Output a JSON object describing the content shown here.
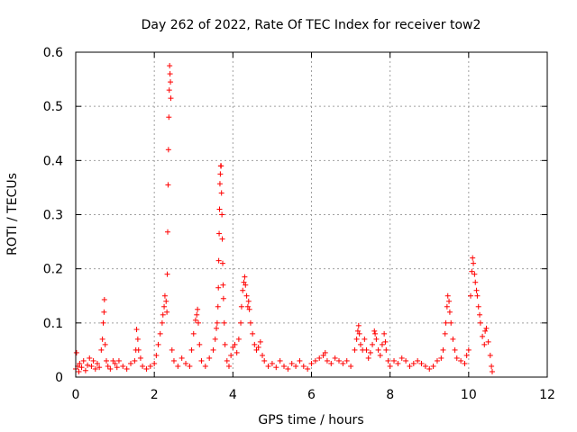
{
  "chart_data": {
    "type": "scatter",
    "title": "Day 262 of 2022, Rate Of TEC Index for receiver tow2",
    "xlabel": "GPS time / hours",
    "ylabel": "ROTI / TECUs",
    "xlim": [
      0,
      12
    ],
    "ylim": [
      0,
      0.6
    ],
    "x_ticks": [
      "0",
      "2",
      "4",
      "6",
      "8",
      "10",
      "12"
    ],
    "y_ticks": [
      "0",
      "0.1",
      "0.2",
      "0.3",
      "0.4",
      "0.5",
      "0.6"
    ],
    "grid": true,
    "marker": "+",
    "color": "#ff0000",
    "series": [
      {
        "points": [
          [
            0.0,
            0.015
          ],
          [
            0.02,
            0.045
          ],
          [
            0.05,
            0.02
          ],
          [
            0.08,
            0.01
          ],
          [
            0.1,
            0.025
          ],
          [
            0.15,
            0.018
          ],
          [
            0.2,
            0.03
          ],
          [
            0.25,
            0.012
          ],
          [
            0.3,
            0.022
          ],
          [
            0.35,
            0.035
          ],
          [
            0.4,
            0.02
          ],
          [
            0.45,
            0.03
          ],
          [
            0.5,
            0.015
          ],
          [
            0.55,
            0.025
          ],
          [
            0.6,
            0.018
          ],
          [
            0.65,
            0.05
          ],
          [
            0.68,
            0.07
          ],
          [
            0.7,
            0.1
          ],
          [
            0.72,
            0.12
          ],
          [
            0.73,
            0.143
          ],
          [
            0.75,
            0.06
          ],
          [
            0.78,
            0.03
          ],
          [
            0.82,
            0.02
          ],
          [
            0.88,
            0.015
          ],
          [
            0.95,
            0.03
          ],
          [
            1.0,
            0.025
          ],
          [
            1.05,
            0.018
          ],
          [
            1.1,
            0.03
          ],
          [
            1.2,
            0.02
          ],
          [
            1.3,
            0.015
          ],
          [
            1.4,
            0.025
          ],
          [
            1.5,
            0.03
          ],
          [
            1.53,
            0.05
          ],
          [
            1.55,
            0.088
          ],
          [
            1.58,
            0.07
          ],
          [
            1.6,
            0.05
          ],
          [
            1.65,
            0.035
          ],
          [
            1.7,
            0.02
          ],
          [
            1.8,
            0.015
          ],
          [
            1.9,
            0.02
          ],
          [
            2.0,
            0.025
          ],
          [
            2.05,
            0.04
          ],
          [
            2.1,
            0.06
          ],
          [
            2.15,
            0.08
          ],
          [
            2.2,
            0.1
          ],
          [
            2.22,
            0.115
          ],
          [
            2.25,
            0.13
          ],
          [
            2.27,
            0.15
          ],
          [
            2.3,
            0.14
          ],
          [
            2.32,
            0.12
          ],
          [
            2.33,
            0.19
          ],
          [
            2.34,
            0.268
          ],
          [
            2.35,
            0.355
          ],
          [
            2.36,
            0.42
          ],
          [
            2.37,
            0.48
          ],
          [
            2.38,
            0.53
          ],
          [
            2.39,
            0.575
          ],
          [
            2.4,
            0.56
          ],
          [
            2.41,
            0.545
          ],
          [
            2.42,
            0.515
          ],
          [
            2.45,
            0.05
          ],
          [
            2.5,
            0.03
          ],
          [
            2.6,
            0.02
          ],
          [
            2.7,
            0.035
          ],
          [
            2.8,
            0.025
          ],
          [
            2.9,
            0.02
          ],
          [
            2.95,
            0.05
          ],
          [
            3.0,
            0.08
          ],
          [
            3.05,
            0.105
          ],
          [
            3.08,
            0.115
          ],
          [
            3.1,
            0.125
          ],
          [
            3.12,
            0.1
          ],
          [
            3.15,
            0.06
          ],
          [
            3.2,
            0.03
          ],
          [
            3.3,
            0.02
          ],
          [
            3.4,
            0.035
          ],
          [
            3.5,
            0.05
          ],
          [
            3.55,
            0.07
          ],
          [
            3.58,
            0.09
          ],
          [
            3.6,
            0.1
          ],
          [
            3.62,
            0.13
          ],
          [
            3.63,
            0.165
          ],
          [
            3.64,
            0.215
          ],
          [
            3.65,
            0.265
          ],
          [
            3.66,
            0.31
          ],
          [
            3.67,
            0.357
          ],
          [
            3.68,
            0.375
          ],
          [
            3.69,
            0.39
          ],
          [
            3.7,
            0.39
          ],
          [
            3.71,
            0.34
          ],
          [
            3.72,
            0.3
          ],
          [
            3.73,
            0.255
          ],
          [
            3.74,
            0.21
          ],
          [
            3.75,
            0.17
          ],
          [
            3.76,
            0.145
          ],
          [
            3.78,
            0.1
          ],
          [
            3.8,
            0.06
          ],
          [
            3.85,
            0.03
          ],
          [
            3.9,
            0.02
          ],
          [
            3.95,
            0.04
          ],
          [
            4.0,
            0.055
          ],
          [
            4.05,
            0.06
          ],
          [
            4.1,
            0.045
          ],
          [
            4.15,
            0.07
          ],
          [
            4.2,
            0.1
          ],
          [
            4.22,
            0.13
          ],
          [
            4.25,
            0.16
          ],
          [
            4.28,
            0.175
          ],
          [
            4.3,
            0.185
          ],
          [
            4.32,
            0.17
          ],
          [
            4.35,
            0.15
          ],
          [
            4.38,
            0.13
          ],
          [
            4.4,
            0.14
          ],
          [
            4.42,
            0.125
          ],
          [
            4.45,
            0.1
          ],
          [
            4.5,
            0.08
          ],
          [
            4.55,
            0.06
          ],
          [
            4.6,
            0.05
          ],
          [
            4.65,
            0.055
          ],
          [
            4.7,
            0.065
          ],
          [
            4.75,
            0.04
          ],
          [
            4.8,
            0.03
          ],
          [
            4.9,
            0.02
          ],
          [
            5.0,
            0.025
          ],
          [
            5.1,
            0.018
          ],
          [
            5.2,
            0.03
          ],
          [
            5.3,
            0.02
          ],
          [
            5.4,
            0.015
          ],
          [
            5.5,
            0.025
          ],
          [
            5.6,
            0.02
          ],
          [
            5.7,
            0.03
          ],
          [
            5.8,
            0.02
          ],
          [
            5.9,
            0.015
          ],
          [
            6.0,
            0.025
          ],
          [
            6.1,
            0.03
          ],
          [
            6.2,
            0.035
          ],
          [
            6.3,
            0.04
          ],
          [
            6.35,
            0.045
          ],
          [
            6.4,
            0.03
          ],
          [
            6.5,
            0.025
          ],
          [
            6.6,
            0.035
          ],
          [
            6.7,
            0.03
          ],
          [
            6.8,
            0.025
          ],
          [
            6.9,
            0.03
          ],
          [
            7.0,
            0.02
          ],
          [
            7.1,
            0.05
          ],
          [
            7.15,
            0.07
          ],
          [
            7.18,
            0.085
          ],
          [
            7.2,
            0.095
          ],
          [
            7.22,
            0.08
          ],
          [
            7.25,
            0.06
          ],
          [
            7.3,
            0.05
          ],
          [
            7.35,
            0.07
          ],
          [
            7.4,
            0.05
          ],
          [
            7.45,
            0.035
          ],
          [
            7.5,
            0.045
          ],
          [
            7.55,
            0.06
          ],
          [
            7.6,
            0.085
          ],
          [
            7.62,
            0.08
          ],
          [
            7.65,
            0.07
          ],
          [
            7.7,
            0.05
          ],
          [
            7.75,
            0.04
          ],
          [
            7.8,
            0.06
          ],
          [
            7.85,
            0.08
          ],
          [
            7.88,
            0.065
          ],
          [
            7.9,
            0.05
          ],
          [
            7.95,
            0.03
          ],
          [
            8.0,
            0.02
          ],
          [
            8.1,
            0.03
          ],
          [
            8.2,
            0.025
          ],
          [
            8.3,
            0.035
          ],
          [
            8.4,
            0.03
          ],
          [
            8.5,
            0.02
          ],
          [
            8.6,
            0.025
          ],
          [
            8.7,
            0.03
          ],
          [
            8.8,
            0.025
          ],
          [
            8.9,
            0.02
          ],
          [
            9.0,
            0.015
          ],
          [
            9.1,
            0.02
          ],
          [
            9.2,
            0.03
          ],
          [
            9.3,
            0.035
          ],
          [
            9.35,
            0.05
          ],
          [
            9.4,
            0.08
          ],
          [
            9.42,
            0.1
          ],
          [
            9.45,
            0.13
          ],
          [
            9.47,
            0.15
          ],
          [
            9.5,
            0.14
          ],
          [
            9.52,
            0.12
          ],
          [
            9.55,
            0.1
          ],
          [
            9.6,
            0.07
          ],
          [
            9.65,
            0.05
          ],
          [
            9.7,
            0.035
          ],
          [
            9.8,
            0.03
          ],
          [
            9.9,
            0.025
          ],
          [
            9.95,
            0.04
          ],
          [
            10.0,
            0.05
          ],
          [
            10.05,
            0.15
          ],
          [
            10.08,
            0.195
          ],
          [
            10.1,
            0.22
          ],
          [
            10.12,
            0.21
          ],
          [
            10.15,
            0.19
          ],
          [
            10.17,
            0.175
          ],
          [
            10.2,
            0.16
          ],
          [
            10.22,
            0.15
          ],
          [
            10.25,
            0.13
          ],
          [
            10.28,
            0.115
          ],
          [
            10.3,
            0.1
          ],
          [
            10.35,
            0.075
          ],
          [
            10.4,
            0.06
          ],
          [
            10.42,
            0.085
          ],
          [
            10.45,
            0.09
          ],
          [
            10.5,
            0.065
          ],
          [
            10.55,
            0.04
          ],
          [
            10.58,
            0.02
          ],
          [
            10.6,
            0.01
          ]
        ]
      }
    ]
  }
}
